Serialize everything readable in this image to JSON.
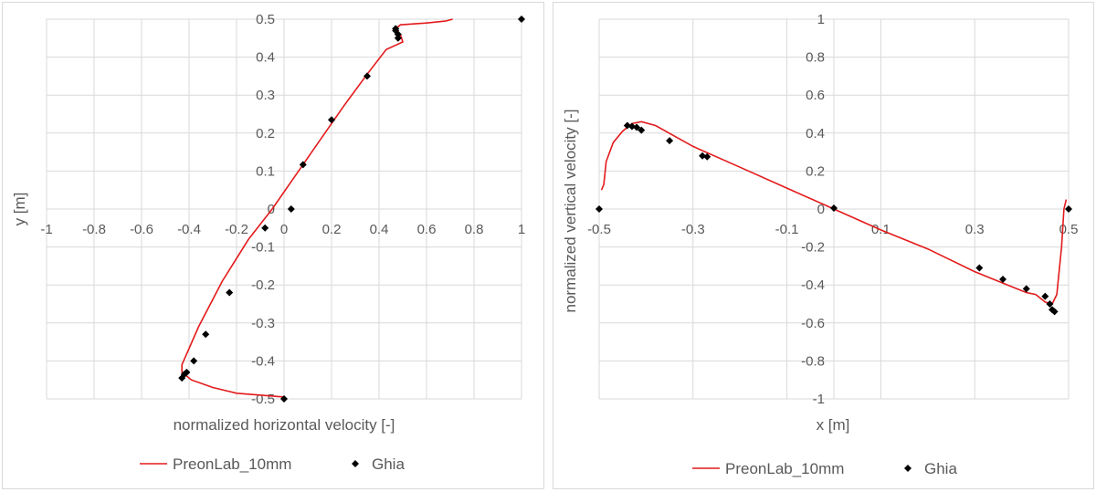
{
  "colors": {
    "preonlab": "#e31a1c",
    "ghia": "#000000"
  },
  "chart_data": [
    {
      "type": "scatter",
      "title": "",
      "xlabel": "normalized horizontal velocity [-]",
      "ylabel": "y [m]",
      "xlim": [
        -1,
        1
      ],
      "ylim": [
        -0.5,
        0.5
      ],
      "xticks": [
        -1,
        -0.8,
        -0.6,
        -0.4,
        -0.2,
        0,
        0.2,
        0.4,
        0.6,
        0.8,
        1
      ],
      "xtick_labels": [
        "-1",
        "-0.8",
        "-0.6",
        "-0.4",
        "-0.2",
        "0",
        "0.2",
        "0.4",
        "0.6",
        "0.8",
        "1"
      ],
      "yticks": [
        -0.5,
        -0.4,
        -0.3,
        -0.2,
        -0.1,
        0,
        0.1,
        0.2,
        0.3,
        0.4,
        0.5
      ],
      "ytick_labels": [
        "-0.5",
        "-0.4",
        "-0.3",
        "-0.2",
        "-0.1",
        "0",
        "0.1",
        "0.2",
        "0.3",
        "0.4",
        "0.5"
      ],
      "grid": true,
      "legend_position": "bottom",
      "series": [
        {
          "name": "PreonLab_10mm",
          "kind": "line",
          "x": [
            0.0,
            -0.2,
            -0.3,
            -0.39,
            -0.43,
            -0.43,
            -0.36,
            -0.26,
            -0.15,
            -0.05,
            0.05,
            0.15,
            0.25,
            0.35,
            0.43,
            0.5,
            0.49,
            0.47,
            0.49,
            0.6,
            0.68,
            0.71
          ],
          "y": [
            -0.495,
            -0.485,
            -0.47,
            -0.45,
            -0.43,
            -0.41,
            -0.31,
            -0.19,
            -0.08,
            0.0,
            0.09,
            0.18,
            0.27,
            0.355,
            0.42,
            0.44,
            0.46,
            0.475,
            0.485,
            0.49,
            0.495,
            0.5
          ]
        },
        {
          "name": "Ghia",
          "kind": "scatter",
          "x": [
            0.0,
            -0.43,
            -0.42,
            -0.41,
            -0.38,
            -0.33,
            -0.23,
            -0.08,
            0.03,
            0.08,
            0.2,
            0.35,
            0.48,
            0.48,
            0.47,
            0.47,
            1.0
          ],
          "y": [
            -0.5,
            -0.445,
            -0.435,
            -0.43,
            -0.4,
            -0.33,
            -0.22,
            -0.05,
            0.0,
            0.117,
            0.235,
            0.35,
            0.45,
            0.46,
            0.47,
            0.475,
            0.5
          ]
        }
      ]
    },
    {
      "type": "scatter",
      "title": "",
      "xlabel": "x [m]",
      "ylabel": "normalized vertical velocity [-]",
      "xlim": [
        -0.5,
        0.5
      ],
      "ylim": [
        -1,
        1
      ],
      "xticks": [
        -0.5,
        -0.3,
        -0.1,
        0.1,
        0.3,
        0.5
      ],
      "xtick_labels": [
        "-0.5",
        "-0.3",
        "-0.1",
        "0.1",
        "0.3",
        "0.5"
      ],
      "yticks": [
        -1,
        -0.8,
        -0.6,
        -0.4,
        -0.2,
        0,
        0.2,
        0.4,
        0.6,
        0.8,
        1
      ],
      "ytick_labels": [
        "-1",
        "-0.8",
        "-0.6",
        "-0.4",
        "-0.2",
        "0",
        "0.2",
        "0.4",
        "0.6",
        "0.8",
        "1"
      ],
      "grid": true,
      "legend_position": "bottom",
      "series": [
        {
          "name": "PreonLab_10mm",
          "kind": "line",
          "x": [
            -0.495,
            -0.49,
            -0.485,
            -0.47,
            -0.45,
            -0.43,
            -0.41,
            -0.38,
            -0.3,
            -0.2,
            -0.1,
            0.0,
            0.1,
            0.2,
            0.3,
            0.37,
            0.41,
            0.43,
            0.45,
            0.465,
            0.475,
            0.485,
            0.49,
            0.495
          ],
          "y": [
            0.1,
            0.13,
            0.25,
            0.35,
            0.41,
            0.45,
            0.46,
            0.44,
            0.33,
            0.22,
            0.11,
            0.0,
            -0.11,
            -0.21,
            -0.33,
            -0.4,
            -0.44,
            -0.45,
            -0.49,
            -0.5,
            -0.45,
            -0.2,
            0.0,
            0.05
          ]
        },
        {
          "name": "Ghia",
          "kind": "scatter",
          "x": [
            -0.5,
            -0.44,
            -0.43,
            -0.42,
            -0.41,
            -0.35,
            -0.28,
            -0.27,
            0.0,
            0.31,
            0.36,
            0.41,
            0.45,
            0.46,
            0.465,
            0.47,
            0.5
          ],
          "y": [
            0.0,
            0.44,
            0.435,
            0.43,
            0.415,
            0.36,
            0.28,
            0.275,
            0.005,
            -0.31,
            -0.37,
            -0.42,
            -0.46,
            -0.5,
            -0.53,
            -0.54,
            0.0
          ]
        }
      ]
    }
  ]
}
